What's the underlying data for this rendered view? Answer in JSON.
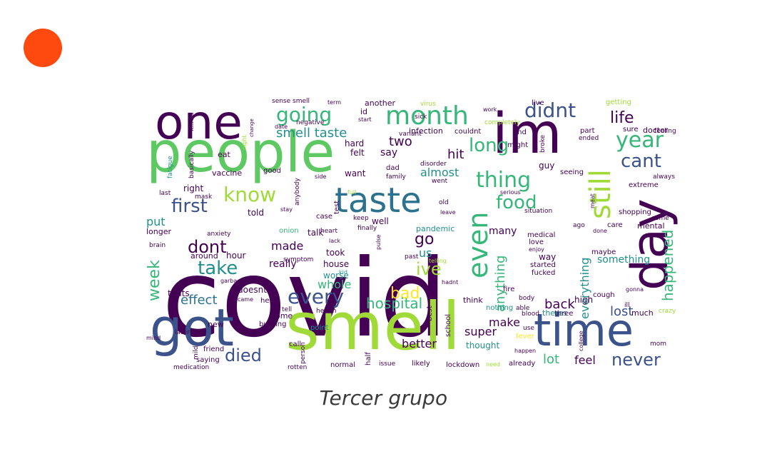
{
  "accent_dot": {
    "color": "#ff4a0f"
  },
  "caption": {
    "text": "Tercer grupo",
    "color": "#3a3a3a"
  },
  "palette": {
    "dark_purple": "#440154",
    "navy": "#3b528b",
    "teal": "#21908d",
    "green": "#5ec962",
    "lime": "#a0da39",
    "yellow": "#fde725",
    "dark_teal": "#2c728e",
    "grey_green": "#35b779"
  },
  "word_cloud": {
    "words": [
      {
        "text": "covid",
        "color": "dark_purple"
      },
      {
        "text": "smell",
        "color": "lime"
      },
      {
        "text": "people",
        "color": "green"
      },
      {
        "text": "im",
        "color": "dark_purple"
      },
      {
        "text": "day",
        "color": "dark_purple"
      },
      {
        "text": "got",
        "color": "navy"
      },
      {
        "text": "one",
        "color": "dark_purple"
      },
      {
        "text": "time",
        "color": "navy"
      },
      {
        "text": "taste",
        "color": "dark_teal"
      },
      {
        "text": "still",
        "color": "lime"
      },
      {
        "text": "month",
        "color": "grey_green"
      },
      {
        "text": "even",
        "color": "grey_green"
      },
      {
        "text": "going",
        "color": "grey_green"
      },
      {
        "text": "didnt",
        "color": "navy"
      },
      {
        "text": "thing",
        "color": "grey_green"
      },
      {
        "text": "year",
        "color": "grey_green"
      },
      {
        "text": "life",
        "color": "dark_purple"
      },
      {
        "text": "cant",
        "color": "navy"
      },
      {
        "text": "long",
        "color": "grey_green"
      },
      {
        "text": "food",
        "color": "grey_green"
      },
      {
        "text": "know",
        "color": "lime"
      },
      {
        "text": "first",
        "color": "navy"
      },
      {
        "text": "happened",
        "color": "grey_green"
      },
      {
        "text": "every",
        "color": "navy"
      },
      {
        "text": "take",
        "color": "teal"
      },
      {
        "text": "dont",
        "color": "dark_purple"
      },
      {
        "text": "go",
        "color": "dark_purple"
      },
      {
        "text": "ive",
        "color": "lime"
      },
      {
        "text": "bad",
        "color": "yellow"
      },
      {
        "text": "week",
        "color": "grey_green"
      },
      {
        "text": "hospital",
        "color": "grey_green"
      },
      {
        "text": "died",
        "color": "navy"
      },
      {
        "text": "never",
        "color": "navy"
      },
      {
        "text": "anything",
        "color": "grey_green"
      },
      {
        "text": "everything",
        "color": "teal"
      },
      {
        "text": "smell taste",
        "color": "teal"
      },
      {
        "text": "two",
        "color": "dark_purple"
      },
      {
        "text": "almost",
        "color": "teal"
      },
      {
        "text": "hit",
        "color": "dark_purple"
      },
      {
        "text": "back",
        "color": "dark_purple"
      },
      {
        "text": "lost",
        "color": "navy"
      },
      {
        "text": "made",
        "color": "dark_purple"
      },
      {
        "text": "us",
        "color": "teal"
      },
      {
        "text": "whole",
        "color": "grey_green"
      },
      {
        "text": "effect",
        "color": "dark_teal"
      },
      {
        "text": "put",
        "color": "teal"
      },
      {
        "text": "right",
        "color": "dark_purple"
      },
      {
        "text": "say",
        "color": "dark_purple"
      },
      {
        "text": "many",
        "color": "dark_purple"
      },
      {
        "text": "make",
        "color": "dark_purple"
      },
      {
        "text": "super",
        "color": "dark_purple"
      },
      {
        "text": "better",
        "color": "dark_purple"
      },
      {
        "text": "lot",
        "color": "grey_green"
      },
      {
        "text": "feel",
        "color": "dark_purple"
      },
      {
        "text": "something",
        "color": "teal"
      },
      {
        "text": "really",
        "color": "dark_purple"
      },
      {
        "text": "told",
        "color": "dark_purple"
      },
      {
        "text": "talk",
        "color": "dark_purple"
      },
      {
        "text": "hour",
        "color": "dark_purple"
      },
      {
        "text": "around",
        "color": "dark_purple"
      },
      {
        "text": "house",
        "color": "dark_purple"
      },
      {
        "text": "took",
        "color": "dark_purple"
      },
      {
        "text": "worse",
        "color": "teal"
      },
      {
        "text": "doesnt",
        "color": "dark_purple"
      },
      {
        "text": "thats",
        "color": "dark_purple"
      },
      {
        "text": "longer",
        "color": "dark_purple"
      },
      {
        "text": "vaccine",
        "color": "dark_purple"
      },
      {
        "text": "eat",
        "color": "dark_purple"
      },
      {
        "text": "felt",
        "color": "dark_purple"
      },
      {
        "text": "hard",
        "color": "dark_purple"
      },
      {
        "text": "want",
        "color": "dark_purple"
      },
      {
        "text": "well",
        "color": "dark_purple"
      },
      {
        "text": "another",
        "color": "dark_purple"
      },
      {
        "text": "id",
        "color": "dark_purple"
      },
      {
        "text": "good",
        "color": "dark_purple"
      },
      {
        "text": "guy",
        "color": "dark_purple"
      },
      {
        "text": "end",
        "color": "dark_purple"
      },
      {
        "text": "high",
        "color": "dark_purple"
      },
      {
        "text": "theres",
        "color": "teal"
      },
      {
        "text": "mental",
        "color": "dark_purple"
      },
      {
        "text": "doctor",
        "color": "dark_purple"
      },
      {
        "text": "much",
        "color": "dark_purple"
      },
      {
        "text": "care",
        "color": "dark_purple"
      },
      {
        "text": "way",
        "color": "dark_purple"
      },
      {
        "text": "maybe",
        "color": "dark_purple"
      },
      {
        "text": "new",
        "color": "dark_purple"
      },
      {
        "text": "home",
        "color": "dark_purple"
      },
      {
        "text": "call",
        "color": "dark_purple"
      },
      {
        "text": "half",
        "color": "dark_purple"
      },
      {
        "text": "normal",
        "color": "dark_purple"
      },
      {
        "text": "issue",
        "color": "dark_purple"
      },
      {
        "text": "likely",
        "color": "dark_purple"
      },
      {
        "text": "lockdown",
        "color": "dark_purple"
      },
      {
        "text": "already",
        "color": "dark_purple"
      },
      {
        "text": "thought",
        "color": "teal"
      },
      {
        "text": "think",
        "color": "dark_purple"
      },
      {
        "text": "mom",
        "color": "dark_purple"
      },
      {
        "text": "infection",
        "color": "dark_purple"
      },
      {
        "text": "couldnt",
        "color": "dark_purple"
      },
      {
        "text": "pandemic",
        "color": "teal"
      },
      {
        "text": "live",
        "color": "dark_purple"
      },
      {
        "text": "extreme",
        "color": "dark_purple"
      },
      {
        "text": "shopping",
        "color": "dark_purple"
      },
      {
        "text": "seeing",
        "color": "dark_purple"
      },
      {
        "text": "always",
        "color": "dark_purple"
      },
      {
        "text": "feeling",
        "color": "dark_purple"
      },
      {
        "text": "cough",
        "color": "dark_purple"
      },
      {
        "text": "fire",
        "color": "dark_purple"
      },
      {
        "text": "body",
        "color": "dark_purple"
      },
      {
        "text": "blood",
        "color": "dark_purple"
      },
      {
        "text": "three",
        "color": "dark_purple"
      },
      {
        "text": "able",
        "color": "dark_purple"
      },
      {
        "text": "started",
        "color": "dark_purple"
      },
      {
        "text": "fucked",
        "color": "dark_purple"
      },
      {
        "text": "love",
        "color": "dark_purple"
      },
      {
        "text": "medical",
        "color": "dark_purple"
      },
      {
        "text": "situation",
        "color": "dark_purple"
      },
      {
        "text": "anxiety",
        "color": "dark_purple"
      },
      {
        "text": "onion",
        "color": "grey_green"
      },
      {
        "text": "heart",
        "color": "dark_purple"
      },
      {
        "text": "symptom",
        "color": "dark_purple"
      },
      {
        "text": "help",
        "color": "dark_purple"
      },
      {
        "text": "burning",
        "color": "dark_purple"
      },
      {
        "text": "point",
        "color": "teal"
      },
      {
        "text": "best",
        "color": "dark_purple"
      },
      {
        "text": "school",
        "color": "dark_purple"
      },
      {
        "text": "nothing",
        "color": "teal"
      },
      {
        "text": "fever",
        "color": "yellow"
      },
      {
        "text": "mask",
        "color": "dark_purple"
      },
      {
        "text": "fatigue",
        "color": "teal"
      },
      {
        "text": "killed",
        "color": "dark_purple"
      },
      {
        "text": "basically",
        "color": "dark_purple"
      },
      {
        "text": "saying",
        "color": "dark_purple"
      },
      {
        "text": "friend",
        "color": "dark_purple"
      },
      {
        "text": "medication",
        "color": "dark_purple"
      },
      {
        "text": "rotten",
        "color": "dark_purple"
      },
      {
        "text": "person",
        "color": "dark_purple"
      },
      {
        "text": "sense smell",
        "color": "dark_purple"
      },
      {
        "text": "negative",
        "color": "dark_purple"
      },
      {
        "text": "date",
        "color": "dark_purple"
      },
      {
        "text": "case",
        "color": "dark_purple"
      },
      {
        "text": "old",
        "color": "dark_purple"
      },
      {
        "text": "test",
        "color": "dark_purple"
      },
      {
        "text": "keep",
        "color": "dark_purple"
      },
      {
        "text": "finally",
        "color": "dark_purple"
      },
      {
        "text": "past",
        "color": "dark_purple"
      },
      {
        "text": "kid",
        "color": "teal"
      },
      {
        "text": "dad",
        "color": "dark_purple"
      },
      {
        "text": "family",
        "color": "dark_purple"
      },
      {
        "text": "disorder",
        "color": "dark_purple"
      },
      {
        "text": "went",
        "color": "dark_purple"
      },
      {
        "text": "virus",
        "color": "lime"
      },
      {
        "text": "work",
        "color": "dark_purple"
      },
      {
        "text": "sick",
        "color": "dark_purple"
      },
      {
        "text": "start",
        "color": "dark_purple"
      },
      {
        "text": "variant",
        "color": "dark_purple"
      },
      {
        "text": "might",
        "color": "dark_purple"
      },
      {
        "text": "completely",
        "color": "lime"
      },
      {
        "text": "broke",
        "color": "dark_purple"
      },
      {
        "text": "ended",
        "color": "dark_purple"
      },
      {
        "text": "part",
        "color": "dark_purple"
      },
      {
        "text": "sure",
        "color": "dark_purple"
      },
      {
        "text": "getting",
        "color": "lime"
      },
      {
        "text": "come",
        "color": "dark_purple"
      },
      {
        "text": "ago",
        "color": "dark_purple"
      },
      {
        "text": "done",
        "color": "dark_purple"
      },
      {
        "text": "gonna",
        "color": "dark_purple"
      },
      {
        "text": "crazy",
        "color": "lime"
      },
      {
        "text": "college",
        "color": "dark_purple"
      },
      {
        "text": "happen",
        "color": "dark_purple"
      },
      {
        "text": "need",
        "color": "lime"
      },
      {
        "text": "use",
        "color": "dark_purple"
      },
      {
        "text": "later",
        "color": "dark_purple"
      },
      {
        "text": "mind",
        "color": "dark_purple"
      },
      {
        "text": "mild",
        "color": "dark_purple"
      },
      {
        "text": "garbage",
        "color": "dark_purple"
      },
      {
        "text": "came",
        "color": "dark_purple"
      },
      {
        "text": "tell",
        "color": "dark_purple"
      },
      {
        "text": "health",
        "color": "dark_purple"
      },
      {
        "text": "brain",
        "color": "dark_purple"
      },
      {
        "text": "last",
        "color": "dark_purple"
      },
      {
        "text": "stay",
        "color": "dark_purple"
      },
      {
        "text": "anybody",
        "color": "dark_purple"
      },
      {
        "text": "leave",
        "color": "dark_purple"
      },
      {
        "text": "serious",
        "color": "dark_purple"
      },
      {
        "text": "lack",
        "color": "dark_purple"
      },
      {
        "text": "full",
        "color": "lime"
      },
      {
        "text": "pulse",
        "color": "dark_purple"
      },
      {
        "text": "hadnt",
        "color": "dark_purple"
      },
      {
        "text": "enjoy",
        "color": "dark_purple"
      },
      {
        "text": "telling",
        "color": "lime"
      },
      {
        "text": "ill",
        "color": "dark_purple"
      },
      {
        "text": "meat",
        "color": "dark_purple"
      },
      {
        "text": "term",
        "color": "dark_purple"
      },
      {
        "text": "side",
        "color": "dark_purple"
      },
      {
        "text": "night",
        "color": "lime"
      },
      {
        "text": "change",
        "color": "dark_purple"
      }
    ]
  }
}
